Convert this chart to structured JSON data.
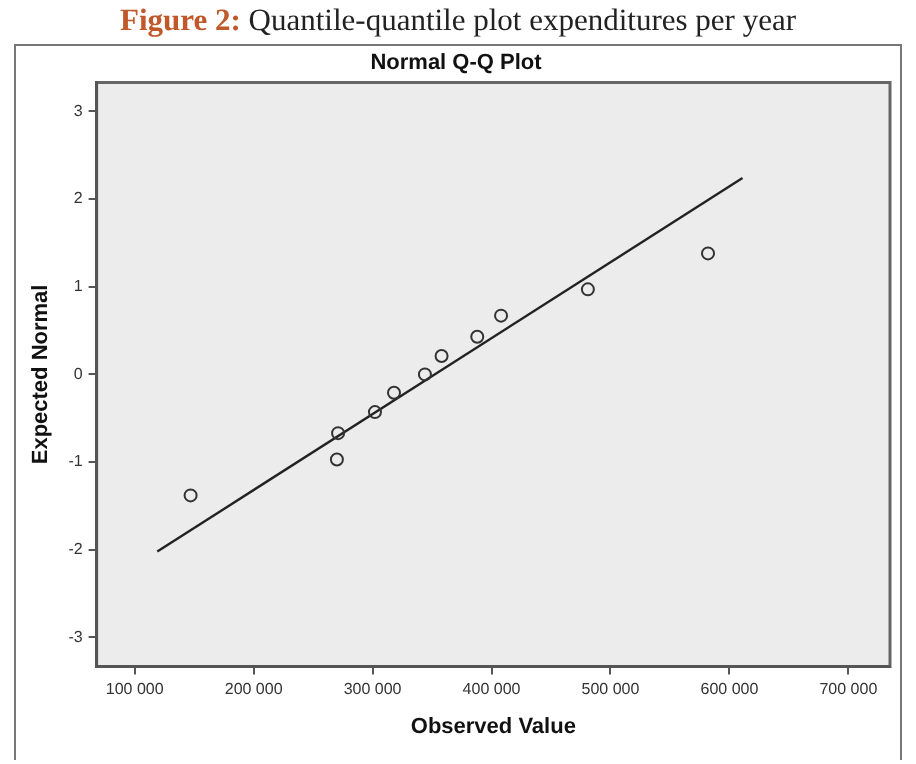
{
  "chart_data": {
    "type": "scatter",
    "title": "Normal Q-Q Plot",
    "xlabel": "Observed Value",
    "ylabel": "Expected Normal",
    "annotations": [
      "Figure 2: Quantile-quantile plot expenditures per year"
    ],
    "series": [
      {
        "marker": "circle",
        "color": "#333333",
        "x": [
          147000,
          270000,
          271000,
          302000,
          318000,
          344000,
          358000,
          388000,
          408000,
          481000,
          582000
        ],
        "values": [
          -1.38,
          -0.97,
          -0.67,
          -0.43,
          -0.21,
          0,
          0.21,
          0.43,
          0.67,
          0.97,
          1.38
        ]
      },
      {
        "type": "line",
        "marker": "none",
        "color": "#222222",
        "x": [
          119000,
          611000
        ],
        "values": [
          -2.02,
          2.24
        ]
      }
    ],
    "xlim": [
      68000,
      735000
    ],
    "xticks": [
      {
        "value": 100000,
        "label": "100 000"
      },
      {
        "value": 200000,
        "label": "200 000"
      },
      {
        "value": 300000,
        "label": "300 000"
      },
      {
        "value": 400000,
        "label": "400 000"
      },
      {
        "value": 500000,
        "label": "500 000"
      },
      {
        "value": 600000,
        "label": "600 000"
      },
      {
        "value": 700000,
        "label": "700 000"
      }
    ],
    "ylim": [
      -3.33,
      3.33
    ],
    "yticks": [
      -3,
      -2,
      -1,
      0,
      1,
      2,
      3
    ],
    "grid": false,
    "legend": false,
    "line_style": "solid"
  }
}
